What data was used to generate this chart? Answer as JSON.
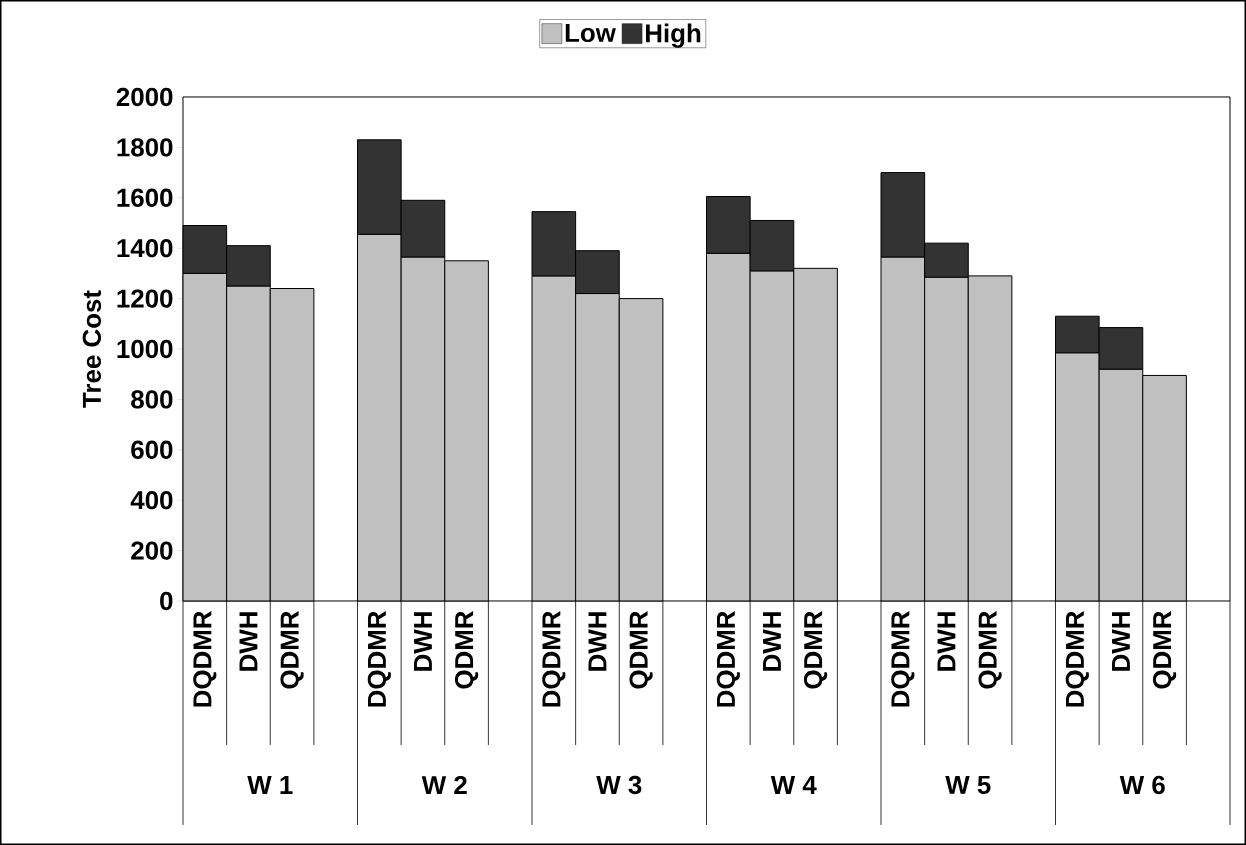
{
  "chart_data": {
    "type": "bar",
    "stacked": true,
    "ylabel": "Tree Cost",
    "categories": [
      "DQDMR",
      "DWH",
      "QDMR",
      null,
      "DQDMR",
      "DWH",
      "QDMR",
      null,
      "DQDMR",
      "DWH",
      "QDMR",
      null,
      "DQDMR",
      "DWH",
      "QDMR",
      null,
      "DQDMR",
      "DWH",
      "QDMR",
      null,
      "DQDMR",
      "DWH",
      "QDMR",
      null
    ],
    "series": [
      {
        "name": "Low",
        "color": "#c0c0c0",
        "values": [
          1300,
          1250,
          1240,
          null,
          1455,
          1365,
          1350,
          null,
          1290,
          1220,
          1200,
          null,
          1380,
          1310,
          1320,
          null,
          1365,
          1285,
          1290,
          null,
          985,
          920,
          895,
          null
        ]
      },
      {
        "name": "High",
        "color": "#333333",
        "values": [
          190,
          160,
          null,
          null,
          375,
          225,
          null,
          null,
          255,
          170,
          null,
          null,
          225,
          200,
          null,
          null,
          335,
          135,
          null,
          null,
          145,
          165,
          null,
          null
        ]
      }
    ],
    "ylim": [
      0,
      2000
    ],
    "yticks": [
      0,
      200,
      400,
      600,
      800,
      1000,
      1200,
      1400,
      1600,
      1800,
      2000
    ],
    "annotations": [
      "W 1",
      "W 2",
      "W 3",
      "W 4",
      "W 5",
      "W 6"
    ],
    "legend": "top"
  }
}
